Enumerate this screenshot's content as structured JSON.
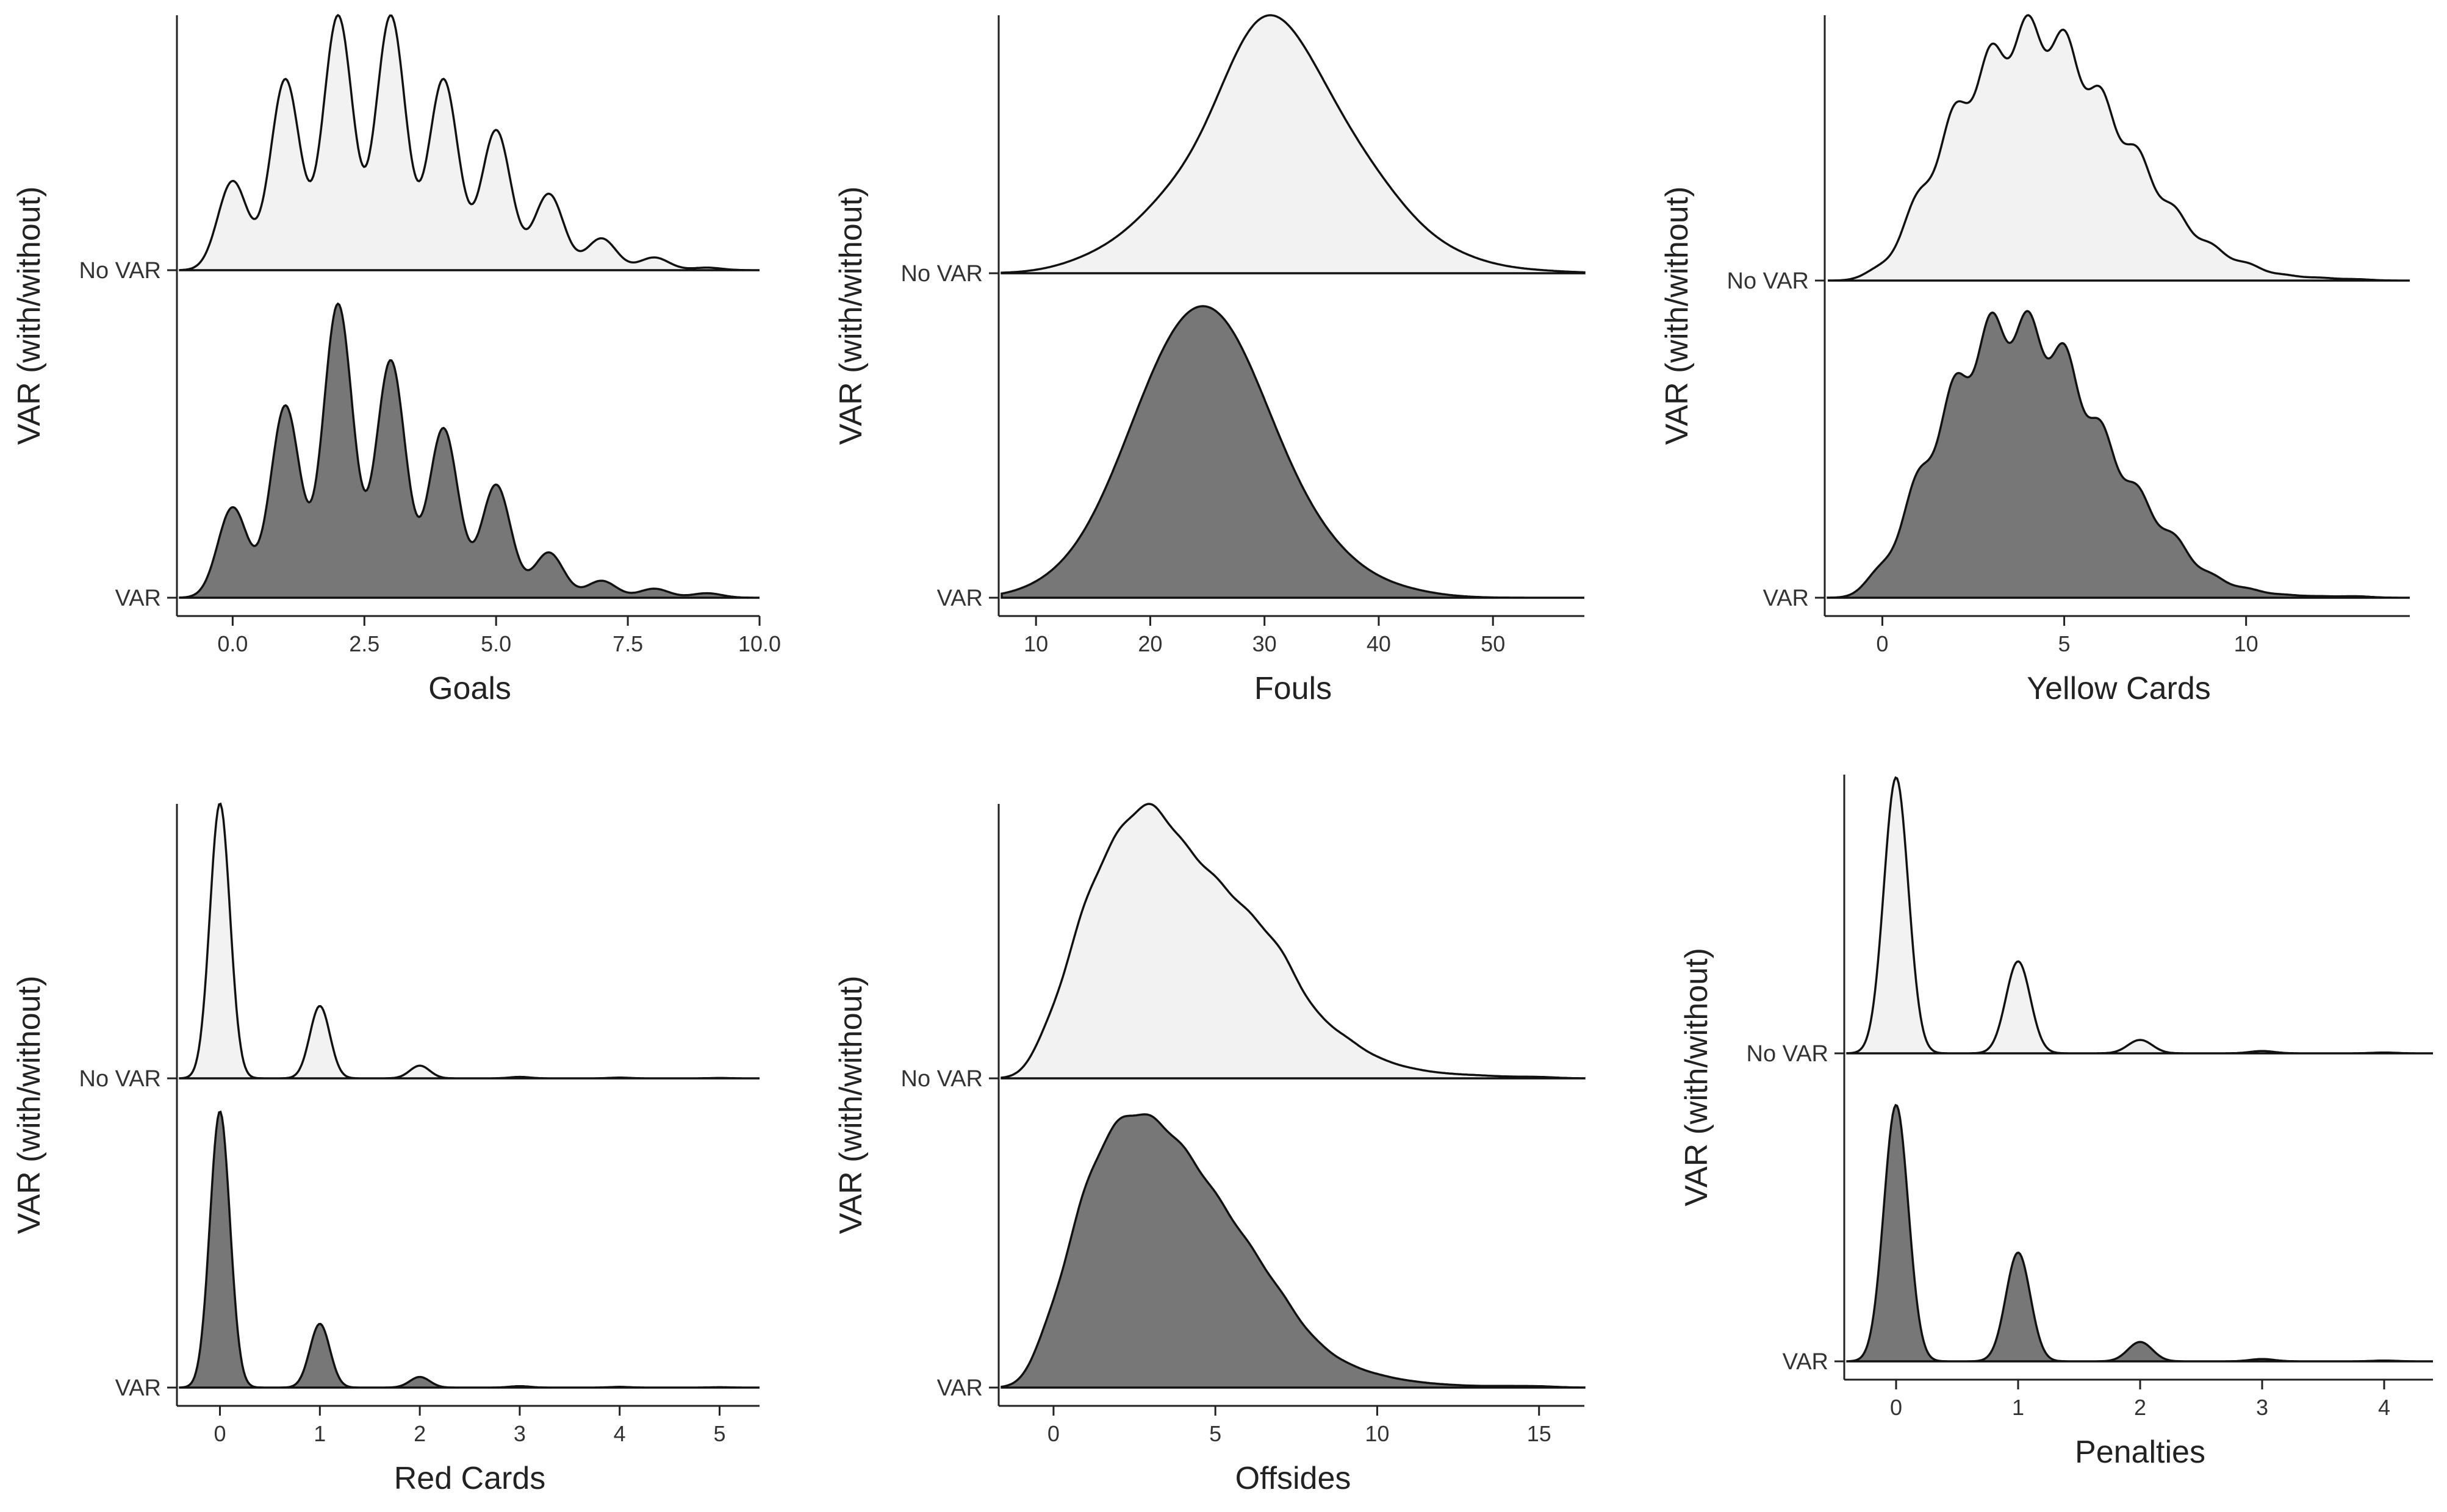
{
  "figure": {
    "common": {
      "ylabel": "VAR (with/without)",
      "categories": [
        "No VAR",
        "VAR"
      ]
    }
  },
  "chart_data": [
    {
      "type": "ridgeline-density",
      "xlabel": "Goals",
      "ylabel": "VAR (with/without)",
      "categories": [
        "No VAR",
        "VAR"
      ],
      "xlim": [
        -1,
        10
      ],
      "xticks": [
        0.0,
        2.5,
        5.0,
        7.5,
        10.0
      ],
      "xtick_labels": [
        "0.0",
        "2.5",
        "5.0",
        "7.5",
        "10.0"
      ],
      "bw": 0.28,
      "series": [
        {
          "name": "No VAR",
          "fill": "#f2f2f2",
          "scale": 1.0,
          "x": [
            0,
            1,
            2,
            3,
            4,
            5,
            6,
            7,
            8,
            9
          ],
          "weights": [
            0.07,
            0.15,
            0.2,
            0.2,
            0.15,
            0.11,
            0.06,
            0.025,
            0.01,
            0.002
          ]
        },
        {
          "name": "VAR",
          "fill": "#777777",
          "scale": 1.0,
          "x": [
            0,
            1,
            2,
            3,
            4,
            5,
            6,
            7,
            8,
            9
          ],
          "weights": [
            0.08,
            0.17,
            0.26,
            0.21,
            0.15,
            0.1,
            0.04,
            0.015,
            0.008,
            0.004
          ]
        }
      ]
    },
    {
      "type": "ridgeline-density",
      "xlabel": "Fouls",
      "ylabel": "VAR (with/without)",
      "categories": [
        "No VAR",
        "VAR"
      ],
      "xlim": [
        7,
        58
      ],
      "xticks": [
        10,
        20,
        30,
        40,
        50
      ],
      "xtick_labels": [
        "10",
        "20",
        "30",
        "40",
        "50"
      ],
      "bw": 3.5,
      "series": [
        {
          "name": "No VAR",
          "fill": "#f2f2f2",
          "scale": 1.0,
          "x": [
            16,
            22,
            28,
            31,
            35,
            40,
            46,
            53
          ],
          "weights": [
            0.03,
            0.12,
            0.25,
            0.24,
            0.2,
            0.12,
            0.03,
            0.005
          ]
        },
        {
          "name": "VAR",
          "fill": "#777777",
          "scale": 1.22,
          "x": [
            13,
            18,
            22,
            26,
            30,
            35,
            41
          ],
          "weights": [
            0.03,
            0.14,
            0.27,
            0.3,
            0.18,
            0.07,
            0.015
          ]
        }
      ]
    },
    {
      "type": "ridgeline-density",
      "xlabel": "Yellow Cards",
      "ylabel": "VAR (with/without)",
      "categories": [
        "No VAR",
        "VAR"
      ],
      "xlim": [
        -1.5,
        14.5
      ],
      "xticks": [
        0,
        5,
        10
      ],
      "xtick_labels": [
        "0",
        "5",
        "10"
      ],
      "bw": 0.42,
      "series": [
        {
          "name": "No VAR",
          "fill": "#f2f2f2",
          "scale": 1.0,
          "x": [
            0,
            1,
            2,
            3,
            4,
            5,
            6,
            7,
            8,
            9,
            10,
            11,
            12,
            13
          ],
          "weights": [
            0.01,
            0.06,
            0.12,
            0.16,
            0.18,
            0.17,
            0.13,
            0.09,
            0.05,
            0.025,
            0.012,
            0.004,
            0.002,
            0.001
          ]
        },
        {
          "name": "VAR",
          "fill": "#777777",
          "scale": 0.95,
          "x": [
            0,
            1,
            2,
            3,
            4,
            5,
            6,
            7,
            8,
            9,
            10,
            11,
            12,
            13
          ],
          "weights": [
            0.02,
            0.08,
            0.14,
            0.18,
            0.18,
            0.16,
            0.11,
            0.07,
            0.04,
            0.015,
            0.006,
            0.002,
            0.001,
            0.001
          ]
        }
      ]
    },
    {
      "type": "ridgeline-density",
      "xlabel": "Red Cards",
      "ylabel": "VAR (with/without)",
      "categories": [
        "No VAR",
        "VAR"
      ],
      "xlim": [
        -0.4,
        5.4
      ],
      "xticks": [
        0,
        1,
        2,
        3,
        4,
        5
      ],
      "xtick_labels": [
        "0",
        "1",
        "2",
        "3",
        "4",
        "5"
      ],
      "bw": 0.1,
      "series": [
        {
          "name": "No VAR",
          "fill": "#f2f2f2",
          "scale": 1.0,
          "x": [
            0,
            1,
            2,
            3,
            4,
            5
          ],
          "weights": [
            0.76,
            0.2,
            0.035,
            0.004,
            0.002,
            0.001
          ]
        },
        {
          "name": "VAR",
          "fill": "#777777",
          "scale": 0.98,
          "x": [
            0,
            1,
            2,
            3,
            4,
            5
          ],
          "weights": [
            0.78,
            0.18,
            0.03,
            0.004,
            0.002,
            0.001
          ]
        }
      ]
    },
    {
      "type": "ridgeline-density",
      "xlabel": "Offsides",
      "ylabel": "VAR (with/without)",
      "categories": [
        "No VAR",
        "VAR"
      ],
      "xlim": [
        -1.6,
        16.4
      ],
      "xticks": [
        0,
        5,
        10,
        15
      ],
      "xtick_labels": [
        "0",
        "5",
        "10",
        "15"
      ],
      "bw": 0.55,
      "series": [
        {
          "name": "No VAR",
          "fill": "#f2f2f2",
          "scale": 1.0,
          "x": [
            0,
            1,
            2,
            3,
            4,
            5,
            6,
            7,
            8,
            9,
            10,
            11,
            12,
            13,
            14,
            15
          ],
          "weights": [
            0.04,
            0.11,
            0.15,
            0.17,
            0.14,
            0.12,
            0.1,
            0.08,
            0.04,
            0.025,
            0.012,
            0.006,
            0.003,
            0.002,
            0.001,
            0.001
          ]
        },
        {
          "name": "VAR",
          "fill": "#777777",
          "scale": 0.95,
          "x": [
            0,
            1,
            2,
            3,
            4,
            5,
            6,
            7,
            8,
            9,
            10,
            11,
            12,
            13,
            14,
            15
          ],
          "weights": [
            0.05,
            0.13,
            0.17,
            0.17,
            0.15,
            0.12,
            0.09,
            0.06,
            0.03,
            0.015,
            0.008,
            0.004,
            0.002,
            0.001,
            0.001,
            0.001
          ]
        }
      ]
    },
    {
      "type": "ridgeline-density",
      "xlabel": "Penalties",
      "ylabel": "VAR (with/without)",
      "categories": [
        "No VAR",
        "VAR"
      ],
      "xlim": [
        -0.4,
        4.4
      ],
      "xticks": [
        0,
        1,
        2,
        3,
        4
      ],
      "xtick_labels": [
        "0",
        "1",
        "2",
        "3",
        "4"
      ],
      "bw": 0.1,
      "series": [
        {
          "name": "No VAR",
          "fill": "#f2f2f2",
          "scale": 1.0,
          "x": [
            0,
            1,
            2,
            3,
            4
          ],
          "weights": [
            0.72,
            0.24,
            0.035,
            0.006,
            0.002
          ]
        },
        {
          "name": "VAR",
          "fill": "#777777",
          "scale": 0.92,
          "x": [
            0,
            1,
            2,
            3,
            4
          ],
          "weights": [
            0.66,
            0.28,
            0.05,
            0.006,
            0.002
          ]
        }
      ]
    }
  ]
}
